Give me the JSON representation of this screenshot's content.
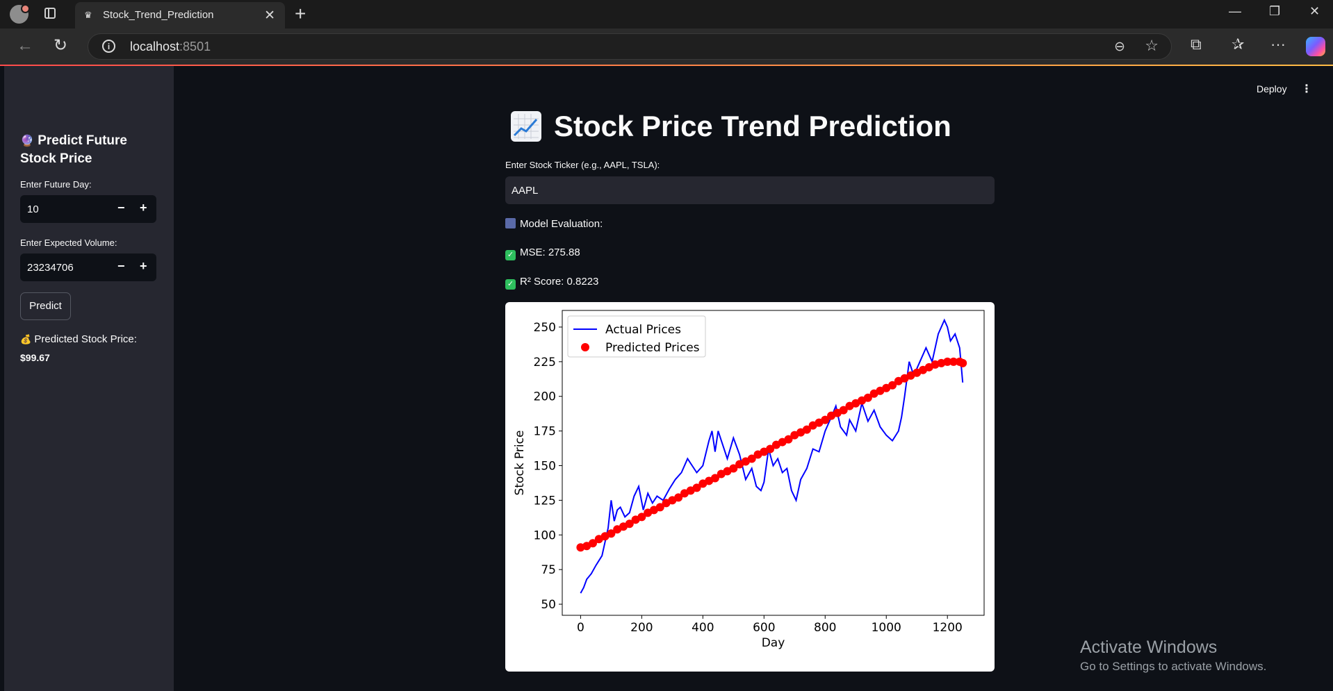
{
  "browser": {
    "tab_title": "Stock_Trend_Prediction",
    "url_host": "localhost",
    "url_port": ":8501"
  },
  "header": {
    "deploy_label": "Deploy"
  },
  "sidebar": {
    "header": "Predict Future Stock Price",
    "future_day": {
      "label": "Enter Future Day:",
      "value": "10"
    },
    "expected_volume": {
      "label": "Enter Expected Volume:",
      "value": "23234706"
    },
    "predict_button": "Predict",
    "predicted_label": "Predicted Stock Price:",
    "predicted_value": "$99.67"
  },
  "main": {
    "title": "Stock Price Trend Prediction",
    "ticker_label": "Enter Stock Ticker (e.g., AAPL, TSLA):",
    "ticker_value": "AAPL",
    "model_eval_label": "Model Evaluation:",
    "mse_label": "MSE: 275.88",
    "r2_label": "R² Score: 0.8223"
  },
  "watermark": {
    "line1": "Activate Windows",
    "line2": "Go to Settings to activate Windows."
  },
  "chart_data": {
    "type": "line",
    "xlabel": "Day",
    "ylabel": "Stock Price",
    "xlim": [
      -60,
      1320
    ],
    "ylim": [
      42,
      262
    ],
    "xticks": [
      0,
      200,
      400,
      600,
      800,
      1000,
      1200
    ],
    "yticks": [
      50,
      75,
      100,
      125,
      150,
      175,
      200,
      225,
      250
    ],
    "legend_position": "top-left",
    "series": [
      {
        "name": "Actual Prices",
        "kind": "line",
        "color": "#0000ff",
        "x": [
          0,
          10,
          20,
          35,
          50,
          70,
          90,
          100,
          110,
          120,
          130,
          145,
          160,
          175,
          190,
          205,
          220,
          235,
          250,
          270,
          290,
          310,
          330,
          350,
          365,
          380,
          400,
          420,
          430,
          440,
          450,
          465,
          480,
          500,
          520,
          540,
          560,
          575,
          590,
          600,
          615,
          630,
          645,
          660,
          675,
          690,
          705,
          720,
          740,
          760,
          780,
          800,
          820,
          835,
          850,
          870,
          880,
          900,
          920,
          940,
          960,
          980,
          1000,
          1020,
          1040,
          1050,
          1060,
          1075,
          1090,
          1110,
          1130,
          1150,
          1170,
          1190,
          1200,
          1210,
          1225,
          1240,
          1250
        ],
        "y": [
          58,
          62,
          68,
          72,
          78,
          85,
          105,
          125,
          110,
          118,
          120,
          113,
          116,
          128,
          135,
          118,
          130,
          123,
          128,
          125,
          133,
          140,
          145,
          155,
          150,
          145,
          150,
          168,
          175,
          160,
          175,
          165,
          155,
          170,
          158,
          140,
          148,
          135,
          132,
          138,
          162,
          150,
          155,
          145,
          148,
          132,
          125,
          140,
          148,
          162,
          160,
          175,
          185,
          193,
          178,
          172,
          183,
          175,
          195,
          182,
          190,
          178,
          172,
          168,
          175,
          185,
          200,
          225,
          215,
          225,
          235,
          225,
          245,
          255,
          250,
          240,
          245,
          235,
          210
        ]
      },
      {
        "name": "Predicted Prices",
        "kind": "scatter",
        "color": "#ff0000",
        "x": [
          0,
          20,
          40,
          60,
          80,
          100,
          120,
          140,
          160,
          180,
          200,
          220,
          240,
          260,
          280,
          300,
          320,
          340,
          360,
          380,
          400,
          420,
          440,
          460,
          480,
          500,
          520,
          540,
          560,
          580,
          600,
          620,
          640,
          660,
          680,
          700,
          720,
          740,
          760,
          780,
          800,
          820,
          840,
          860,
          880,
          900,
          920,
          940,
          960,
          980,
          1000,
          1020,
          1040,
          1060,
          1080,
          1100,
          1120,
          1140,
          1160,
          1180,
          1200,
          1220,
          1240,
          1250
        ],
        "y": [
          91,
          92,
          94,
          97,
          99,
          101,
          104,
          106,
          108,
          111,
          113,
          116,
          118,
          120,
          123,
          125,
          127,
          130,
          132,
          134,
          137,
          139,
          141,
          144,
          146,
          148,
          151,
          153,
          155,
          158,
          160,
          162,
          165,
          167,
          169,
          172,
          174,
          176,
          179,
          181,
          183,
          186,
          188,
          190,
          193,
          195,
          197,
          199,
          202,
          204,
          206,
          208,
          211,
          213,
          215,
          217,
          219,
          221,
          223,
          224,
          225,
          225,
          225,
          224
        ]
      }
    ]
  }
}
